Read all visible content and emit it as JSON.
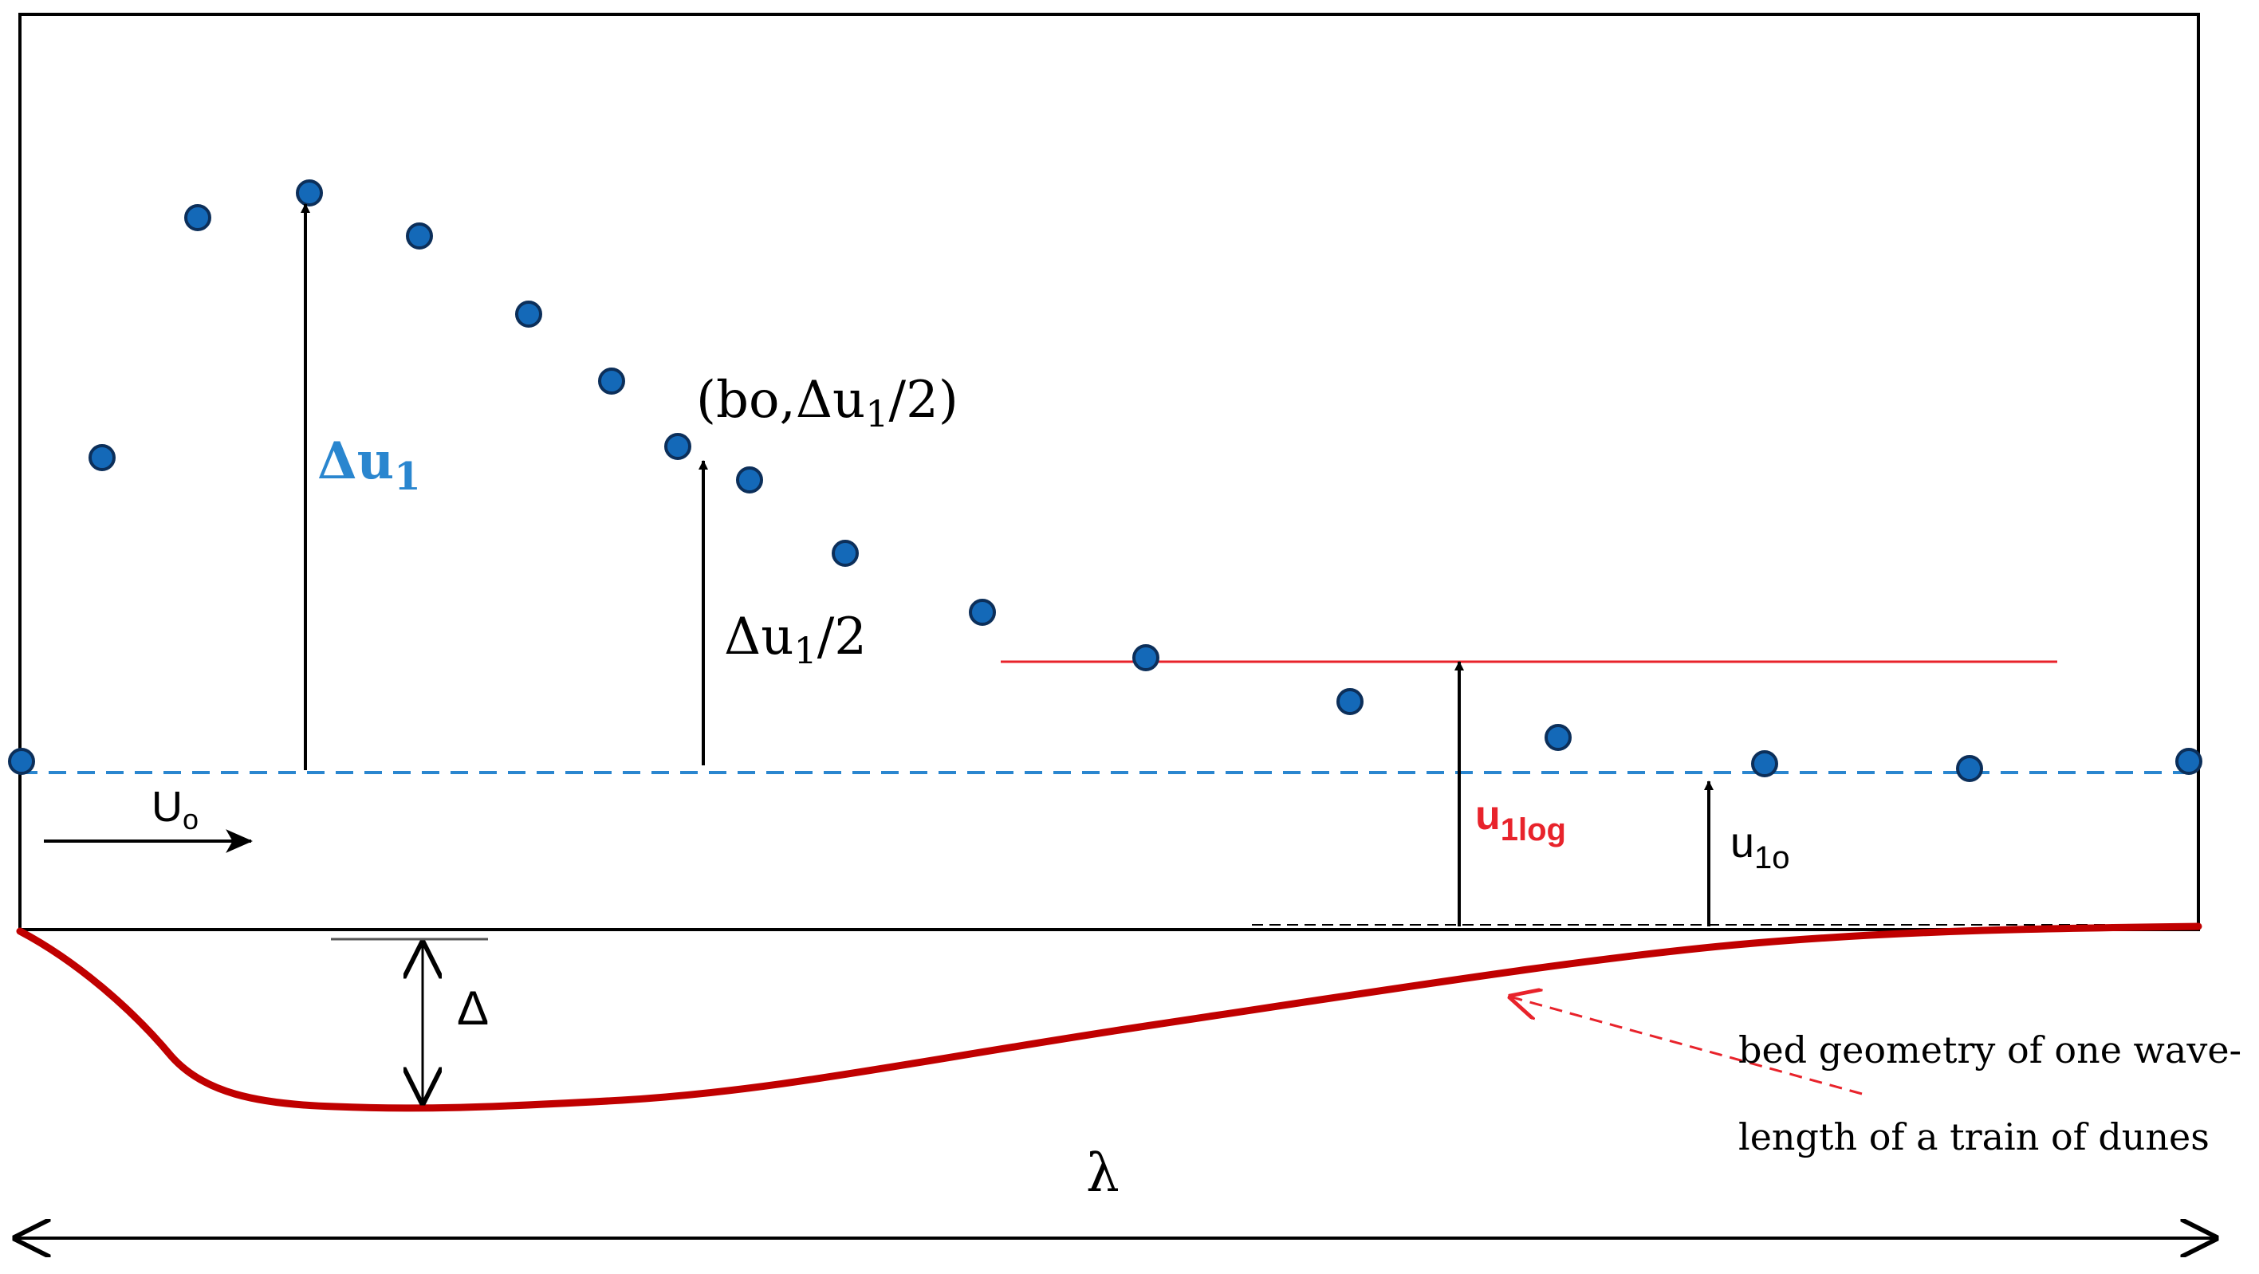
{
  "colors": {
    "dot_fill": "#1469b8",
    "dot_stroke": "#0c2f5a",
    "dash_line": "#2a86cf",
    "delta_u1_label": "#2a86cf",
    "u1log": "#e8232b",
    "bed": "#c00000",
    "ink": "#000000"
  },
  "labels": {
    "delta_u1": {
      "base": "Δu",
      "sub": "1"
    },
    "half_point": {
      "pre": "(bo,Δu",
      "sub": "1",
      "post": "/2)"
    },
    "half_delta": {
      "base": "Δu",
      "sub": "1",
      "post": "/2"
    },
    "u_free": {
      "base": "U",
      "sub": "o"
    },
    "u1log": {
      "base": "u",
      "sub": "1log"
    },
    "u1o": {
      "base": "u",
      "sub": "1o"
    },
    "delta": "Δ",
    "lambda": "λ",
    "bed_line1": "bed geometry of one wave-",
    "bed_line2": "length of a train of dunes"
  },
  "points_count_note_removed": null
}
